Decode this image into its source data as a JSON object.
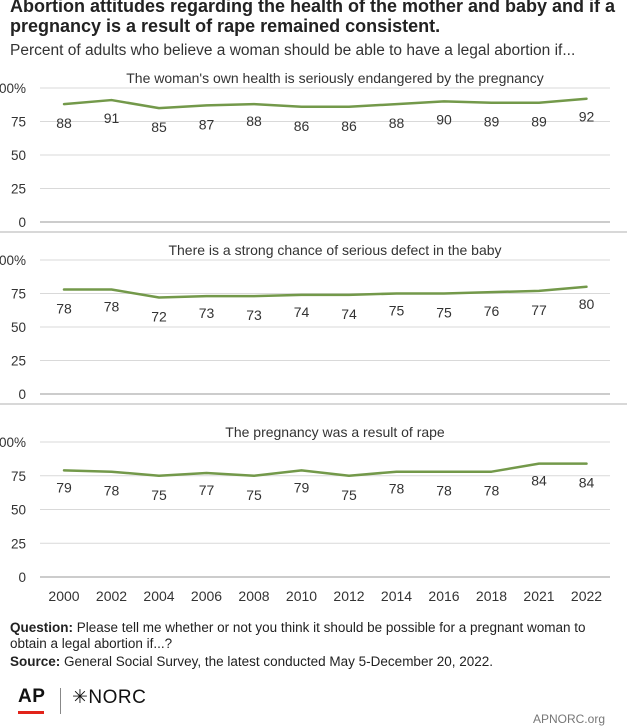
{
  "header": {
    "title": "Abortion attitudes regarding the health of the mother and baby and if a pregnancy is a result of rape remained consistent.",
    "subtitle": "Percent of adults who believe a woman should be able to have a legal abortion if..."
  },
  "colors": {
    "line": "#73994a",
    "grid": "#d9d9d9",
    "divider": "#cccccc"
  },
  "chart_data": [
    {
      "type": "line",
      "title": "The woman's own health is seriously endangered by the pregnancy",
      "x": [
        "2000",
        "2002",
        "2004",
        "2006",
        "2008",
        "2010",
        "2012",
        "2014",
        "2016",
        "2018",
        "2021",
        "2022"
      ],
      "values": [
        88,
        91,
        85,
        87,
        88,
        86,
        86,
        88,
        90,
        89,
        89,
        92
      ],
      "ylim": [
        0,
        100
      ],
      "yticks": [
        "0",
        "25",
        "50",
        "75",
        "100%"
      ],
      "grid": true
    },
    {
      "type": "line",
      "title": "There is a strong chance of serious defect in the baby",
      "x": [
        "2000",
        "2002",
        "2004",
        "2006",
        "2008",
        "2010",
        "2012",
        "2014",
        "2016",
        "2018",
        "2021",
        "2022"
      ],
      "values": [
        78,
        78,
        72,
        73,
        73,
        74,
        74,
        75,
        75,
        76,
        77,
        80
      ],
      "ylim": [
        0,
        100
      ],
      "yticks": [
        "0",
        "25",
        "50",
        "75",
        "100%"
      ],
      "grid": true
    },
    {
      "type": "line",
      "title": "The pregnancy was a result of rape",
      "x": [
        "2000",
        "2002",
        "2004",
        "2006",
        "2008",
        "2010",
        "2012",
        "2014",
        "2016",
        "2018",
        "2021",
        "2022"
      ],
      "values": [
        79,
        78,
        75,
        77,
        75,
        79,
        75,
        78,
        78,
        78,
        84,
        84
      ],
      "ylim": [
        0,
        100
      ],
      "yticks": [
        "0",
        "25",
        "50",
        "75",
        "100%"
      ],
      "grid": true
    }
  ],
  "footer": {
    "question_label": "Question:",
    "question_text": " Please tell me whether or not you think it should be possible for a pregnant woman to obtain a legal abortion if...?",
    "source_label": "Source:",
    "source_text": " General Social Survey, the latest conducted May 5-December 20, 2022.",
    "ap_logo": "AP",
    "norc_logo": "✳NORC",
    "site": "APNORC.org"
  }
}
